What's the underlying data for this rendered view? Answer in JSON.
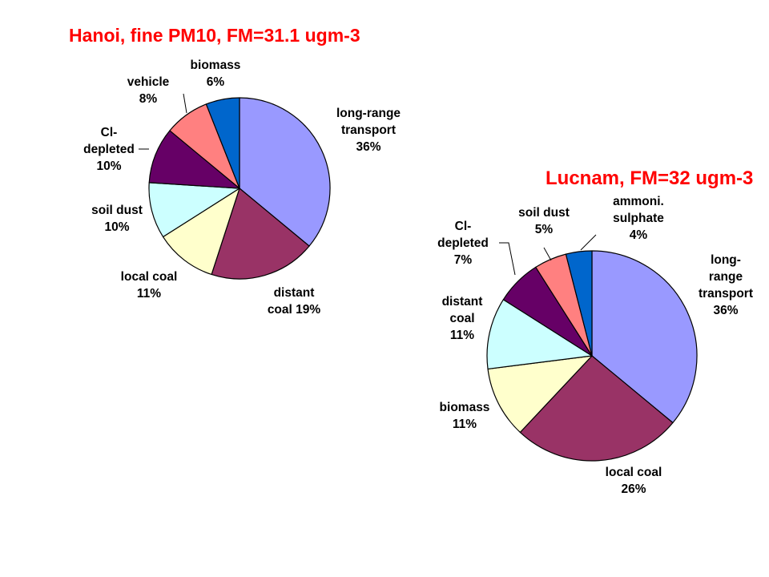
{
  "chart_data": [
    {
      "type": "pie",
      "title": "Hanoi, fine PM10, FM=31.1 ugm-3",
      "slices": [
        {
          "name": "long-range transport",
          "value": 36,
          "label_lines": [
            "long-range",
            "transport",
            "36%"
          ],
          "color": "#9999ff"
        },
        {
          "name": "distant coal",
          "value": 19,
          "label_lines": [
            "distant",
            "coal 19%"
          ],
          "color": "#993366"
        },
        {
          "name": "local coal",
          "value": 11,
          "label_lines": [
            "local coal",
            "11%"
          ],
          "color": "#ffffcc"
        },
        {
          "name": "soil dust",
          "value": 10,
          "label_lines": [
            "soil dust",
            "10%"
          ],
          "color": "#ccffff"
        },
        {
          "name": "Cl-depleted",
          "value": 10,
          "label_lines": [
            "Cl-",
            "depleted",
            "10%"
          ],
          "color": "#660066"
        },
        {
          "name": "vehicle",
          "value": 8,
          "label_lines": [
            "vehicle",
            "8%"
          ],
          "color": "#ff8080"
        },
        {
          "name": "biomass",
          "value": 6,
          "label_lines": [
            "biomass",
            "6%"
          ],
          "color": "#0066cc"
        }
      ]
    },
    {
      "type": "pie",
      "title": "Lucnam, FM=32 ugm-3",
      "slices": [
        {
          "name": "long-range transport",
          "value": 36,
          "label_lines": [
            "long-",
            "range",
            "transport",
            "36%"
          ],
          "color": "#9999ff"
        },
        {
          "name": "local coal",
          "value": 26,
          "label_lines": [
            "local coal",
            "26%"
          ],
          "color": "#993366"
        },
        {
          "name": "biomass",
          "value": 11,
          "label_lines": [
            "biomass",
            "11%"
          ],
          "color": "#ffffcc"
        },
        {
          "name": "distant coal",
          "value": 11,
          "label_lines": [
            "distant",
            "coal",
            "11%"
          ],
          "color": "#ccffff"
        },
        {
          "name": "Cl-depleted",
          "value": 7,
          "label_lines": [
            "Cl-",
            "depleted",
            "7%"
          ],
          "color": "#660066"
        },
        {
          "name": "soil dust",
          "value": 5,
          "label_lines": [
            "soil dust",
            "5%"
          ],
          "color": "#ff8080"
        },
        {
          "name": "ammoni. sulphate",
          "value": 4,
          "label_lines": [
            "ammoni.",
            "sulphate",
            "4%"
          ],
          "color": "#0066cc"
        }
      ]
    }
  ]
}
